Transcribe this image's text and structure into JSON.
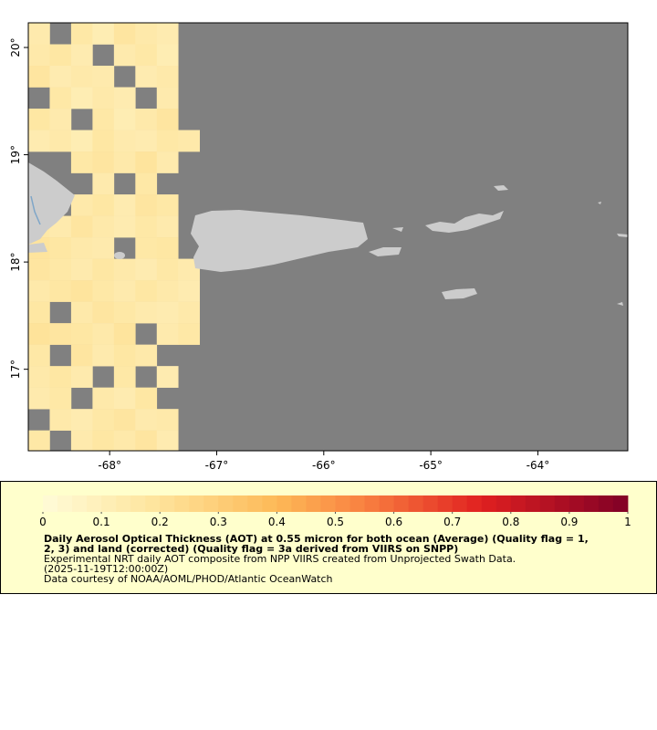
{
  "chart_data": {
    "type": "map",
    "xlim": [
      -68.76,
      -63.16
    ],
    "ylim": [
      16.24,
      20.23
    ],
    "xticks": [
      {
        "value": -68,
        "label": "-68°"
      },
      {
        "value": -67,
        "label": "-67°"
      },
      {
        "value": -66,
        "label": "-66°"
      },
      {
        "value": -65,
        "label": "-65°"
      },
      {
        "value": -64,
        "label": "-64°"
      }
    ],
    "yticks": [
      {
        "value": 17,
        "label": "17°"
      },
      {
        "value": 18,
        "label": "18°"
      },
      {
        "value": 19,
        "label": "19°"
      },
      {
        "value": 20,
        "label": "20°"
      }
    ],
    "nodata_color": "#808080",
    "land_color": "#cccccc",
    "aot": {
      "lons": [
        -68.66,
        -68.46,
        -68.26,
        -68.06,
        -67.86,
        -67.66,
        -67.46,
        -67.26
      ],
      "lats": [
        20.13,
        19.93,
        19.73,
        19.53,
        19.33,
        19.13,
        18.93,
        18.73,
        18.53,
        18.33,
        18.13,
        17.93,
        17.73,
        17.53,
        17.33,
        17.13,
        16.93,
        16.73,
        16.53,
        16.33
      ],
      "values": [
        [
          0.14,
          null,
          0.16,
          0.12,
          0.18,
          0.15,
          0.13,
          null
        ],
        [
          0.15,
          0.17,
          0.13,
          null,
          0.14,
          0.16,
          0.12,
          null
        ],
        [
          0.18,
          0.13,
          0.15,
          0.14,
          null,
          0.13,
          0.15,
          null
        ],
        [
          null,
          0.16,
          0.12,
          0.15,
          0.13,
          null,
          0.14,
          null
        ],
        [
          0.17,
          0.14,
          null,
          0.16,
          0.12,
          0.15,
          0.18,
          null
        ],
        [
          0.13,
          0.15,
          0.12,
          0.17,
          0.14,
          0.13,
          0.16,
          0.15
        ],
        [
          null,
          null,
          0.16,
          0.18,
          0.15,
          0.19,
          0.14,
          null
        ],
        [
          null,
          null,
          null,
          0.14,
          null,
          0.16,
          null,
          null
        ],
        [
          null,
          null,
          0.15,
          0.17,
          0.13,
          0.18,
          0.16,
          null
        ],
        [
          0.16,
          0.14,
          0.18,
          0.15,
          0.13,
          0.16,
          0.14,
          null
        ],
        [
          0.19,
          0.17,
          0.15,
          0.14,
          null,
          0.16,
          0.17,
          null
        ],
        [
          0.18,
          0.16,
          0.14,
          0.17,
          0.15,
          0.13,
          0.16,
          0.14
        ],
        [
          0.15,
          0.17,
          0.19,
          0.16,
          0.14,
          0.17,
          0.15,
          0.13
        ],
        [
          0.17,
          null,
          0.15,
          0.18,
          0.16,
          0.14,
          0.13,
          0.15
        ],
        [
          0.2,
          0.18,
          0.17,
          0.15,
          0.19,
          null,
          0.14,
          0.16
        ],
        [
          0.16,
          null,
          0.18,
          0.14,
          0.17,
          0.15,
          null,
          null
        ],
        [
          0.15,
          0.17,
          0.14,
          null,
          0.16,
          null,
          0.13,
          null
        ],
        [
          0.14,
          0.16,
          null,
          0.15,
          0.13,
          0.17,
          null,
          null
        ],
        [
          null,
          0.15,
          0.13,
          0.16,
          0.18,
          0.14,
          0.15,
          null
        ],
        [
          0.16,
          null,
          0.14,
          0.17,
          0.15,
          0.18,
          0.13,
          null
        ]
      ]
    },
    "clim": [
      0,
      1
    ],
    "cticks": [
      0,
      0.1,
      0.2,
      0.3,
      0.4,
      0.5,
      0.6,
      0.7,
      0.8,
      0.9,
      1
    ],
    "colorscale": [
      {
        "value": 0,
        "color": "#fffbd8"
      },
      {
        "value": 0.2,
        "color": "#fee39a"
      },
      {
        "value": 0.4,
        "color": "#fdb957"
      },
      {
        "value": 0.55,
        "color": "#f98040"
      },
      {
        "value": 0.75,
        "color": "#e02020"
      },
      {
        "value": 1,
        "color": "#800026"
      }
    ],
    "title_lines": [
      "Daily Aerosol Optical Thickness (AOT) at 0.55 micron for both ocean (Average) (Quality flag = 1,",
      "2, 3) and land (corrected) (Quality flag = 3a derived from VIIRS on SNPP)"
    ],
    "note_lines": [
      "Experimental NRT daily AOT composite from NPP VIIRS created from Unprojected Swath Data.",
      "(2025-11-19T12:00:00Z)",
      "Data courtesy of NOAA/AOML/PHOD/Atlantic OceanWatch"
    ]
  }
}
